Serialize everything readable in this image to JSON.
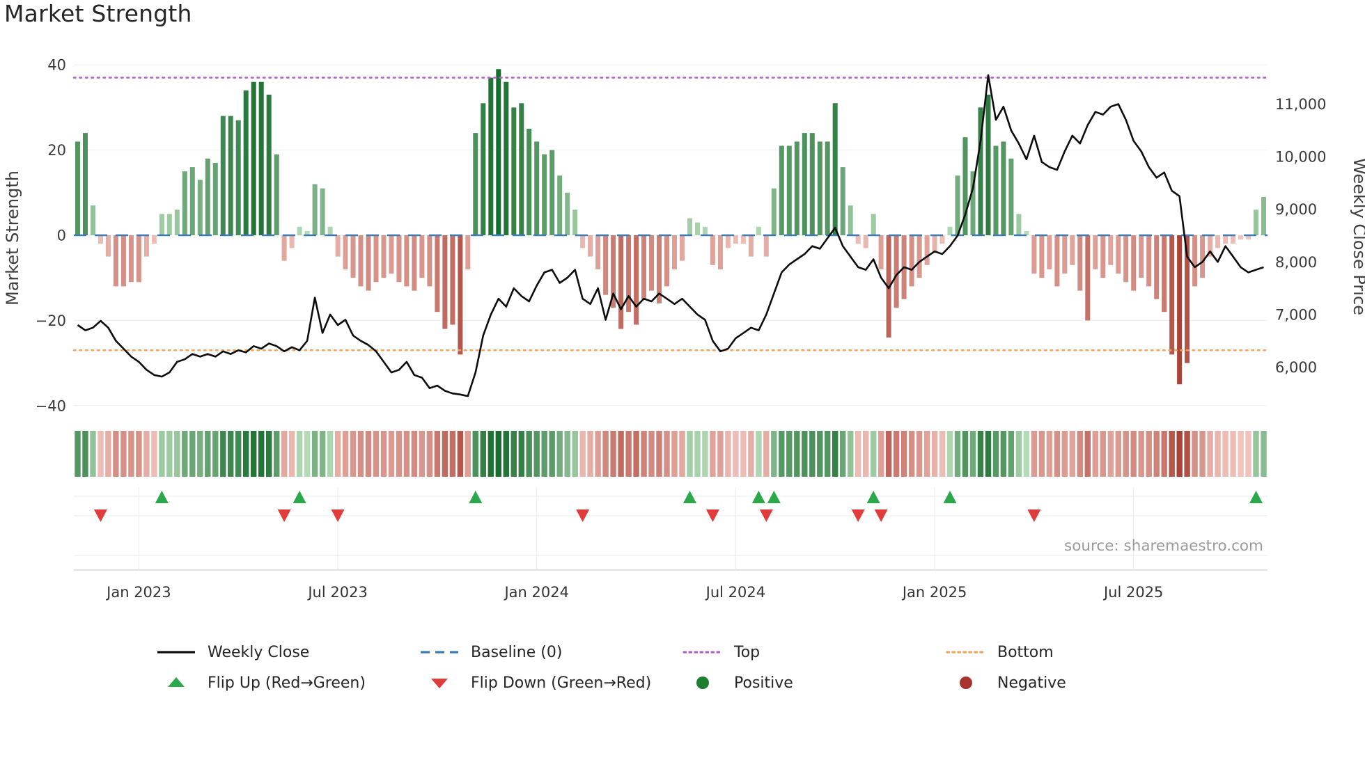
{
  "title": "Market Strength",
  "source": "source: sharemaestro.com",
  "axes": {
    "left_label": "Market Strength",
    "right_label": "Weekly Close Price",
    "left_ticks": [
      40,
      20,
      0,
      -20,
      -40
    ],
    "right_ticks": [
      11000,
      10000,
      9000,
      8000,
      7000,
      6000
    ],
    "x_tick_labels": [
      "Jan 2023",
      "Jul 2023",
      "Jan 2024",
      "Jul 2024",
      "Jan 2025",
      "Jul 2025"
    ],
    "x_tick_weeks": [
      8,
      34,
      60,
      86,
      112,
      138
    ]
  },
  "legend": {
    "row1": [
      {
        "name": "weekly-close",
        "label": "Weekly Close",
        "swatch": "line-solid",
        "color": "#0d0d0d"
      },
      {
        "name": "baseline",
        "label": "Baseline (0)",
        "swatch": "line-dashed",
        "color": "#3b7cb8"
      },
      {
        "name": "top",
        "label": "Top",
        "swatch": "line-dotted",
        "color": "#b55fd4"
      },
      {
        "name": "bottom",
        "label": "Bottom",
        "swatch": "line-dotted",
        "color": "#f4a259"
      }
    ],
    "row2": [
      {
        "name": "flip-up",
        "label": "Flip Up (Red→Green)",
        "swatch": "triangle-up",
        "color": "#2aa84a"
      },
      {
        "name": "flip-down",
        "label": "Flip Down (Green→Red)",
        "swatch": "triangle-down",
        "color": "#e13c3c"
      },
      {
        "name": "positive",
        "label": "Positive",
        "swatch": "circle",
        "color": "#1d7e2c"
      },
      {
        "name": "negative",
        "label": "Negative",
        "swatch": "circle",
        "color": "#a8322d"
      }
    ]
  },
  "chart_data": {
    "type": "combo",
    "x": {
      "start_date": "2022-11-06",
      "interval": "weekly",
      "n_points": 156
    },
    "x_tick_labels": [
      "Jan 2023",
      "Jul 2023",
      "Jan 2024",
      "Jul 2024",
      "Jan 2025",
      "Jul 2025"
    ],
    "ylim_left": [
      -40,
      40
    ],
    "y_right_ticks": [
      6000,
      7000,
      8000,
      9000,
      10000,
      11000
    ],
    "legend_position": "bottom",
    "heatmap_strip": "color band mirroring Market Strength bar values (green positive, red negative, intensity by magnitude)",
    "reference_lines": [
      {
        "name": "Baseline (0)",
        "value": 0,
        "style": "dashed",
        "color": "#3b7cb8"
      },
      {
        "name": "Top",
        "value": 37,
        "style": "dotted",
        "color": "#b55fd4"
      },
      {
        "name": "Bottom",
        "value": -27,
        "style": "dotted",
        "color": "#f4a259"
      }
    ],
    "series": [
      {
        "name": "Market Strength",
        "type": "bar",
        "axis": "left",
        "color_scale_positive": [
          "#bfe3c0",
          "#176b2d"
        ],
        "color_scale_negative": [
          "#f6cdc6",
          "#a23327"
        ],
        "values": [
          22,
          24,
          7,
          -2,
          -5,
          -12,
          -12,
          -11,
          -11,
          -5,
          -2,
          5,
          5,
          6,
          15,
          16,
          13,
          18,
          17,
          28,
          28,
          27,
          34,
          36,
          36,
          33,
          19,
          -6,
          -3,
          2,
          1,
          12,
          11,
          2,
          -5,
          -8,
          -10,
          -12,
          -13,
          -11,
          -10,
          -9,
          -11,
          -12,
          -13,
          -10,
          -12,
          -18,
          -22,
          -21,
          -28,
          -8,
          24,
          31,
          37,
          39,
          36,
          30,
          31,
          25,
          22,
          19,
          20,
          14,
          10,
          6,
          -3,
          -5,
          -8,
          -14,
          -17,
          -22,
          -18,
          -21,
          -15,
          -13,
          -16,
          -12,
          -8,
          -6,
          4,
          3,
          2,
          -7,
          -8,
          -3,
          -2,
          -2,
          -5,
          2,
          -5,
          11,
          21,
          21,
          22,
          24,
          24,
          22,
          22,
          31,
          16,
          7,
          -2,
          -3,
          5,
          -8,
          -24,
          -17,
          -15,
          -12,
          -10,
          -7,
          -4,
          -2,
          2,
          14,
          23,
          15,
          30,
          33,
          21,
          22,
          18,
          5,
          1,
          -9,
          -10,
          -8,
          -12,
          -9,
          -7,
          -13,
          -20,
          -8,
          -10,
          -7,
          -9,
          -11,
          -13,
          -10,
          -12,
          -15,
          -18,
          -28,
          -35,
          -30,
          -12,
          -10,
          -5,
          -3,
          -2,
          -2,
          -1,
          -1,
          6,
          9
        ]
      },
      {
        "name": "Weekly Close",
        "type": "line",
        "axis": "right",
        "color": "#0d0d0d",
        "values": [
          6800,
          6700,
          6750,
          6880,
          6750,
          6500,
          6350,
          6200,
          6100,
          5950,
          5850,
          5820,
          5900,
          6100,
          6150,
          6250,
          6200,
          6250,
          6200,
          6300,
          6250,
          6320,
          6280,
          6400,
          6350,
          6450,
          6400,
          6300,
          6380,
          6320,
          6500,
          7320,
          6650,
          7000,
          6800,
          6900,
          6600,
          6500,
          6420,
          6300,
          6100,
          5900,
          5950,
          6100,
          5850,
          5800,
          5600,
          5650,
          5550,
          5500,
          5480,
          5450,
          5900,
          6600,
          7000,
          7300,
          7150,
          7500,
          7350,
          7250,
          7550,
          7800,
          7850,
          7600,
          7700,
          7850,
          7300,
          7200,
          7500,
          6900,
          7400,
          7100,
          7350,
          7150,
          7300,
          7250,
          7400,
          7300,
          7200,
          7300,
          7150,
          7000,
          6900,
          6500,
          6300,
          6350,
          6550,
          6650,
          6750,
          6700,
          7000,
          7400,
          7800,
          7950,
          8050,
          8150,
          8300,
          8250,
          8450,
          8650,
          8300,
          8100,
          7900,
          7850,
          8050,
          7700,
          7500,
          7750,
          7900,
          7850,
          8000,
          8100,
          8200,
          8150,
          8300,
          8500,
          8900,
          9400,
          10300,
          11550,
          10700,
          10950,
          10500,
          10250,
          9950,
          10400,
          9900,
          9800,
          9750,
          10100,
          10400,
          10250,
          10600,
          10850,
          10800,
          10950,
          11000,
          10700,
          10300,
          10100,
          9800,
          9600,
          9700,
          9350,
          9250,
          8100,
          7900,
          8000,
          8200,
          8000,
          8300,
          8100,
          7900,
          7800,
          7850,
          7900
        ]
      }
    ],
    "flip_up_weeks": [
      11,
      29,
      52,
      80,
      89,
      91,
      104,
      114,
      154
    ],
    "flip_down_weeks": [
      3,
      27,
      34,
      66,
      83,
      90,
      102,
      105,
      125
    ]
  }
}
